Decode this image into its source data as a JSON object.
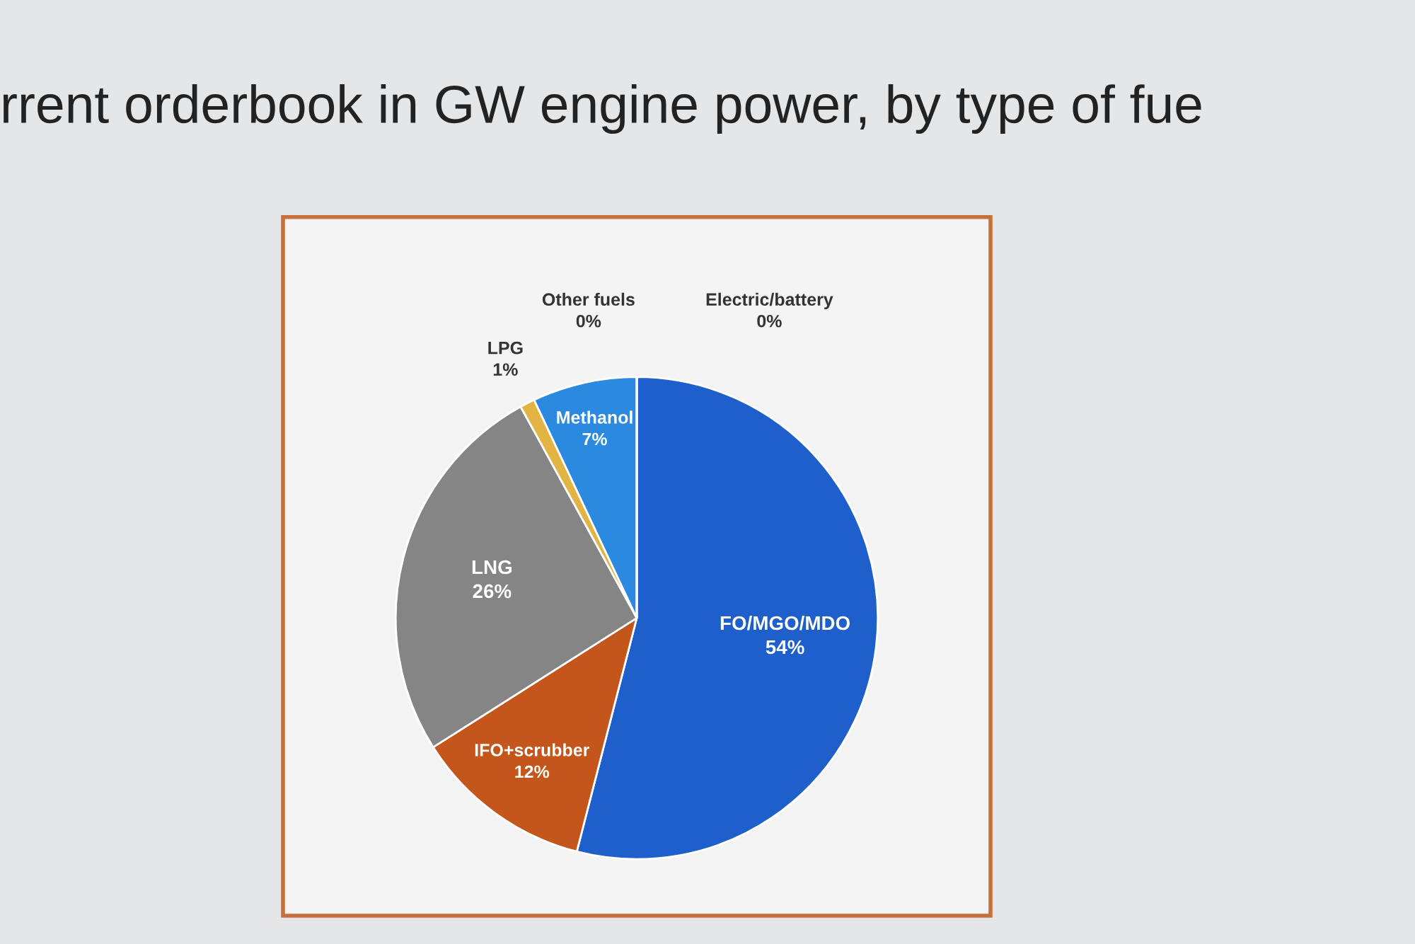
{
  "chart_data": {
    "type": "pie",
    "title": "rrent orderbook in GW engine power, by type of fue",
    "categories": [
      "FO/MGO/MDO",
      "IFO+scrubber",
      "LNG",
      "LPG",
      "Methanol",
      "Other fuels",
      "Electric/battery"
    ],
    "values": [
      54,
      12,
      26,
      1,
      7,
      0,
      0
    ],
    "value_labels": [
      "54%",
      "12%",
      "26%",
      "1%",
      "7%",
      "0%",
      "0%"
    ],
    "colors": [
      "#1f5fcc",
      "#c4561c",
      "#858585",
      "#e2b443",
      "#2b8ae0",
      "#c8d0da",
      "#a8cdf2"
    ]
  }
}
